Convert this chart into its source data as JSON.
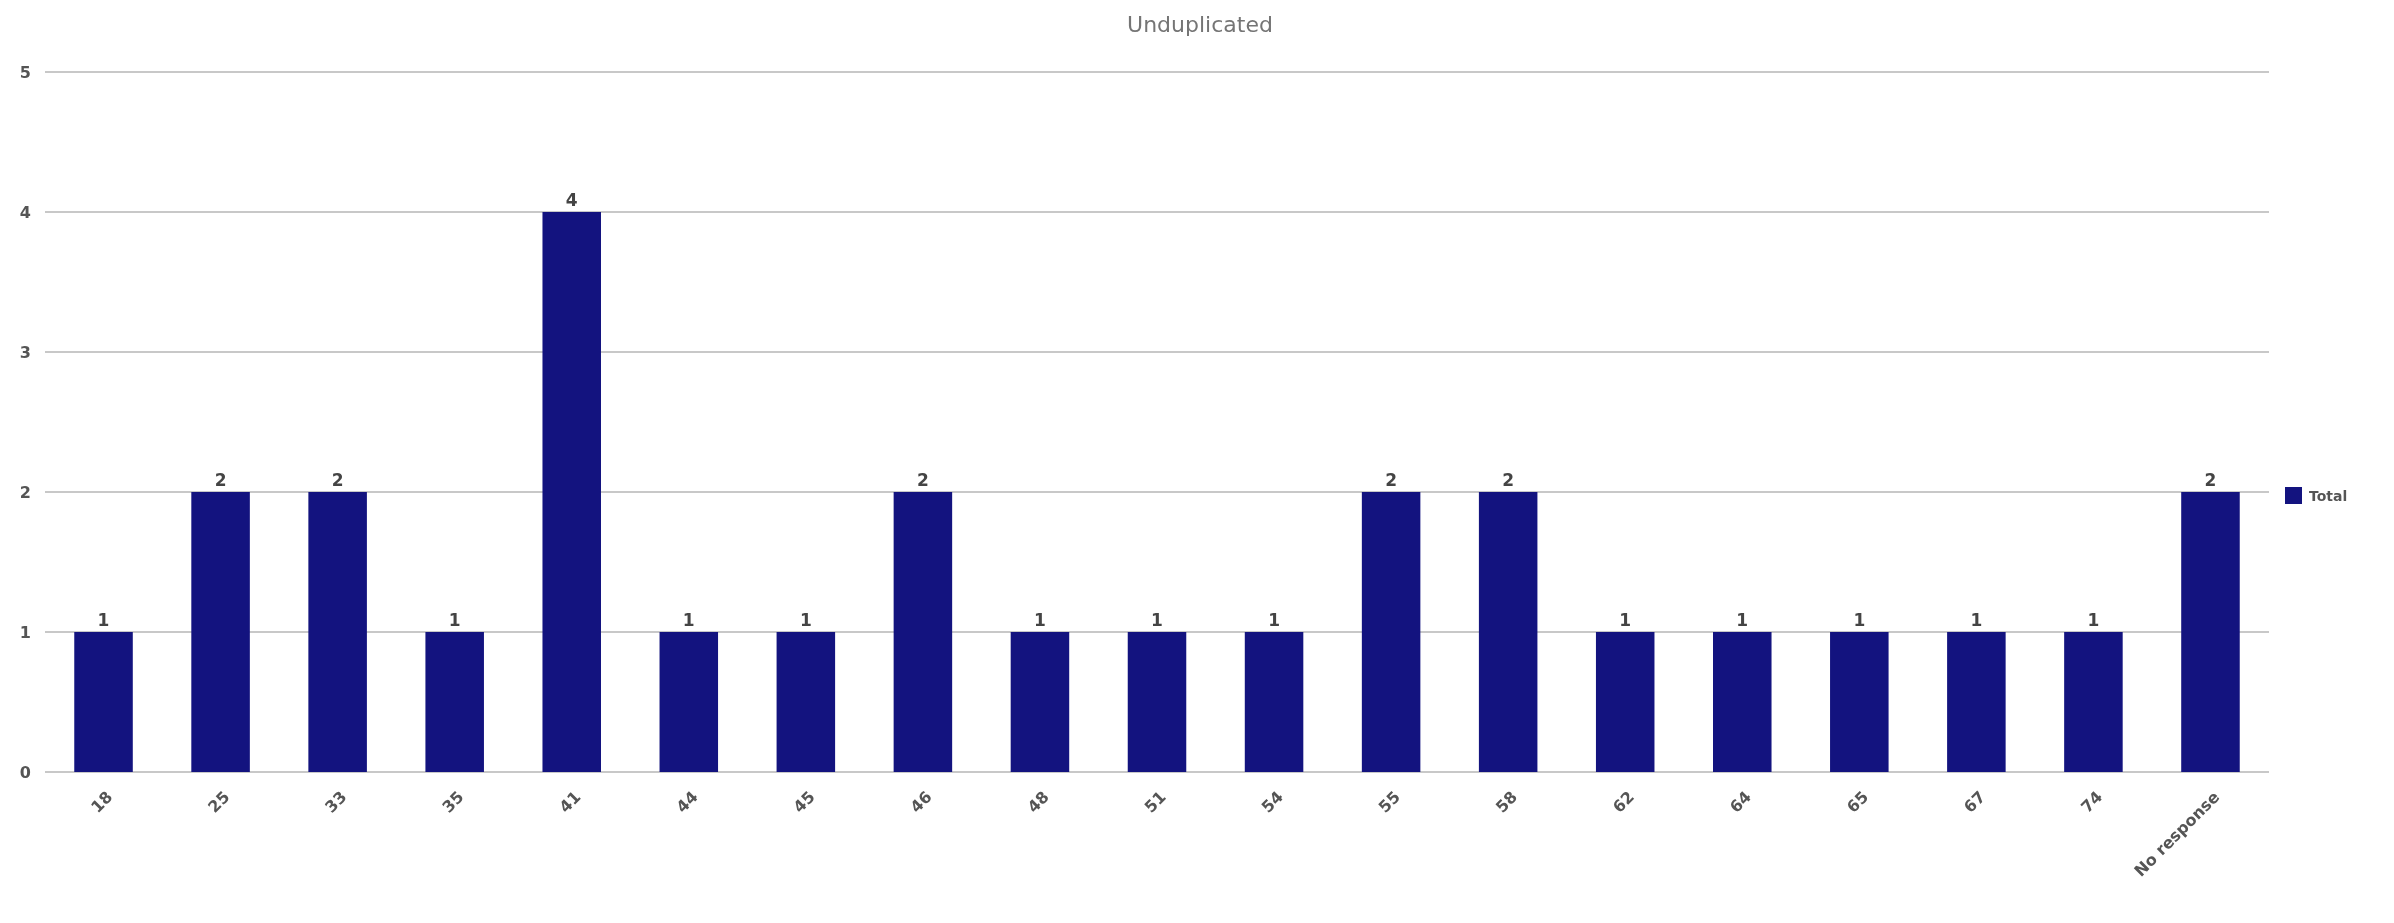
{
  "chart_data": {
    "type": "bar",
    "title": "Unduplicated",
    "categories": [
      "18",
      "25",
      "33",
      "35",
      "41",
      "44",
      "45",
      "46",
      "48",
      "51",
      "54",
      "55",
      "58",
      "62",
      "64",
      "65",
      "67",
      "74",
      "No response"
    ],
    "series": [
      {
        "name": "Total",
        "color": "#13137f",
        "values": [
          1,
          2,
          2,
          1,
          4,
          1,
          1,
          2,
          1,
          1,
          1,
          2,
          2,
          1,
          1,
          1,
          1,
          1,
          2
        ]
      }
    ],
    "ylim": [
      0,
      5
    ],
    "yticks": [
      0,
      1,
      2,
      3,
      4,
      5
    ],
    "grid": "y",
    "legend": "right",
    "data_labels": true
  }
}
